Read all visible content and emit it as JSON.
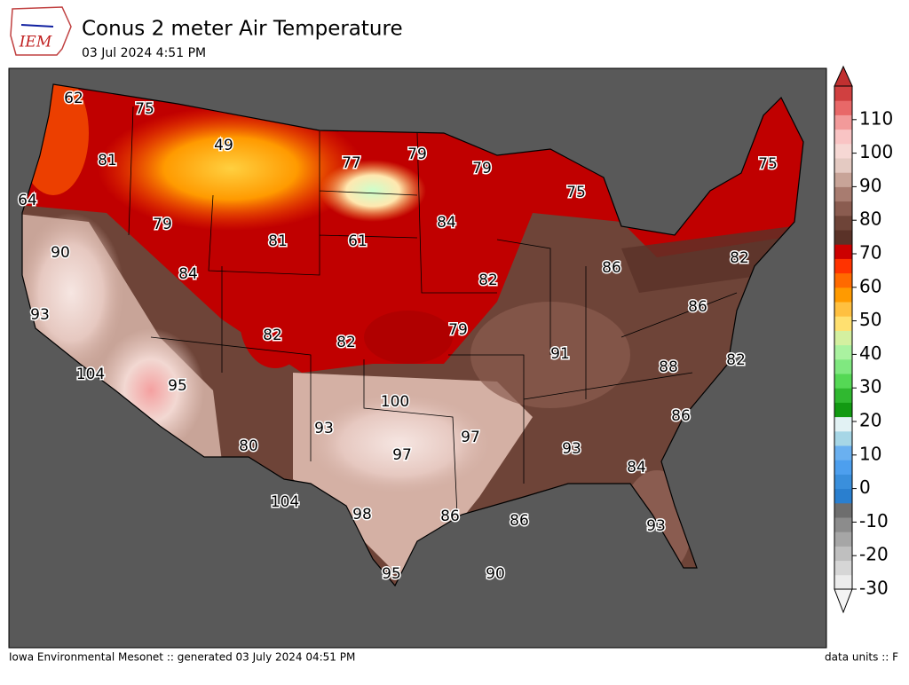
{
  "header": {
    "logo_text": "IEM",
    "title": "Conus 2 meter Air Temperature",
    "subtitle": "03 Jul 2024 4:51 PM"
  },
  "station_labels": [
    62,
    75,
    49,
    77,
    79,
    79,
    75,
    81,
    64,
    75,
    84,
    79,
    81,
    61,
    90,
    82,
    84,
    86,
    82,
    86,
    93,
    82,
    82,
    79,
    91,
    82,
    104,
    95,
    88,
    100,
    86,
    93,
    97,
    80,
    93,
    97,
    84,
    104,
    98,
    86,
    86,
    93,
    95,
    90
  ],
  "colorbar": {
    "lim": [
      -30,
      120
    ],
    "ticks": [
      -30,
      -20,
      -10,
      0,
      10,
      20,
      30,
      40,
      50,
      60,
      70,
      80,
      90,
      100,
      110
    ],
    "colors": [
      "#ececec",
      "#d6d6d6",
      "#bfbfbf",
      "#a6a6a6",
      "#8c8c8c",
      "#6e6e6e",
      "#2a7fcf",
      "#3a8fdc",
      "#4d9fee",
      "#6ab0f0",
      "#a6d6e6",
      "#e2f2f4",
      "#129a12",
      "#30b830",
      "#55d855",
      "#80e880",
      "#aaf2a0",
      "#d4f0a0",
      "#ffe070",
      "#ffc040",
      "#ff9a00",
      "#ff6a00",
      "#ff3300",
      "#cc0000",
      "#5a3228",
      "#6e4438",
      "#8a5c50",
      "#a87c70",
      "#c8a498",
      "#e4cac2"
    ],
    "over_colors": [
      "#f6d8d4",
      "#f9c4c4",
      "#f29a9a",
      "#e86868",
      "#d04040"
    ]
  },
  "footer": {
    "left": "Iowa Environmental Mesonet :: generated 03 July 2024 04:51 PM",
    "right": "data units :: F"
  }
}
